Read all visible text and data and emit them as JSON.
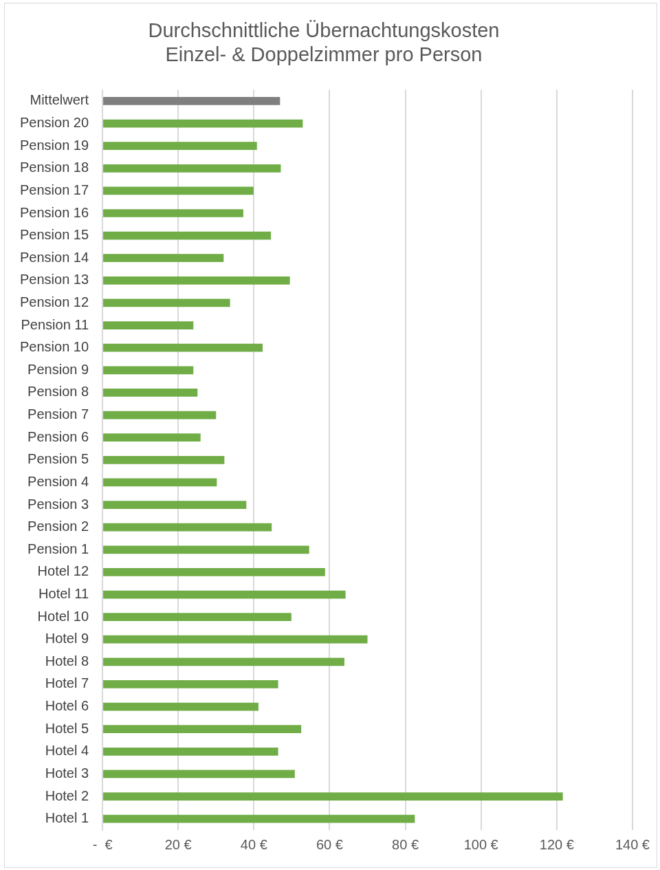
{
  "chart_data": {
    "type": "bar",
    "orientation": "horizontal",
    "title": "Durchschnittliche Übernachtungskosten\nEinzel- & Doppelzimmer pro Person",
    "categories": [
      "Mittelwert",
      "Pension 20",
      "Pension 19",
      "Pension 18",
      "Pension 17",
      "Pension 16",
      "Pension 15",
      "Pension 14",
      "Pension 13",
      "Pension 12",
      "Pension 11",
      "Pension 10",
      "Pension 9",
      "Pension 8",
      "Pension 7",
      "Pension 6",
      "Pension 5",
      "Pension 4",
      "Pension 3",
      "Pension 2",
      "Pension 1",
      "Hotel 12",
      "Hotel 11",
      "Hotel 10",
      "Hotel 9",
      "Hotel 8",
      "Hotel 7",
      "Hotel 6",
      "Hotel 5",
      "Hotel 4",
      "Hotel 3",
      "Hotel 2",
      "Hotel 1"
    ],
    "values": [
      46.9,
      52.9,
      40.8,
      47.1,
      39.9,
      37.2,
      44.5,
      32.0,
      49.5,
      33.7,
      24.0,
      42.3,
      24.0,
      25.1,
      30.0,
      25.9,
      32.2,
      30.2,
      38.0,
      44.7,
      54.6,
      58.8,
      64.2,
      49.9,
      70.0,
      63.9,
      46.4,
      41.2,
      52.5,
      46.4,
      50.8,
      121.6,
      82.5
    ],
    "colors": [
      "#7f7f7f",
      "#70ad47",
      "#70ad47",
      "#70ad47",
      "#70ad47",
      "#70ad47",
      "#70ad47",
      "#70ad47",
      "#70ad47",
      "#70ad47",
      "#70ad47",
      "#70ad47",
      "#70ad47",
      "#70ad47",
      "#70ad47",
      "#70ad47",
      "#70ad47",
      "#70ad47",
      "#70ad47",
      "#70ad47",
      "#70ad47",
      "#70ad47",
      "#70ad47",
      "#70ad47",
      "#70ad47",
      "#70ad47",
      "#70ad47",
      "#70ad47",
      "#70ad47",
      "#70ad47",
      "#70ad47",
      "#70ad47",
      "#70ad47"
    ],
    "xlim": [
      0,
      140
    ],
    "xticks": [
      {
        "value": 0,
        "label": "-  €"
      },
      {
        "value": 20,
        "label": "20 €"
      },
      {
        "value": 40,
        "label": "40 €"
      },
      {
        "value": 60,
        "label": "60 €"
      },
      {
        "value": 80,
        "label": "80 €"
      },
      {
        "value": 100,
        "label": "100 €"
      },
      {
        "value": 120,
        "label": "120 €"
      },
      {
        "value": 140,
        "label": "140 €"
      }
    ],
    "grid": "x",
    "legend": false
  }
}
